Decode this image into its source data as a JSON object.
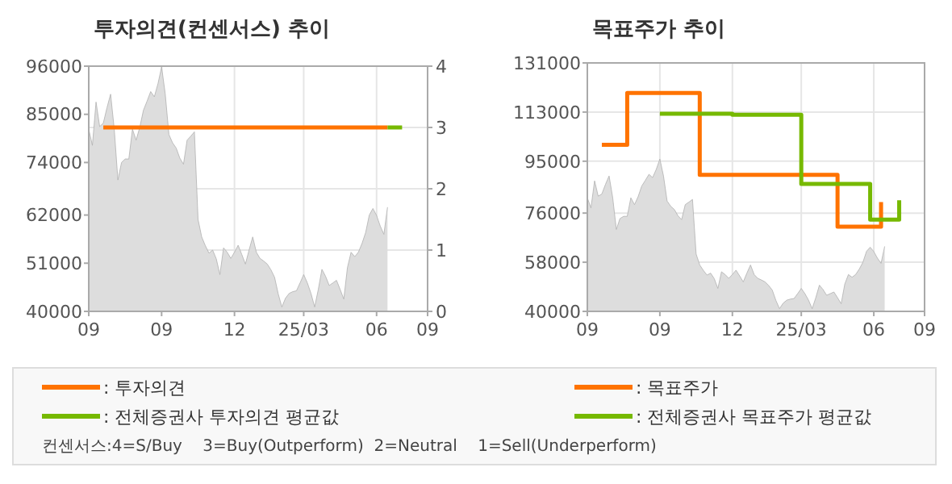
{
  "chart_data": [
    {
      "type": "step",
      "title": "투자의견(컨센서스) 추이",
      "categories": [
        "09",
        null,
        null,
        null,
        null,
        null,
        null,
        null,
        null,
        null,
        null,
        null,
        null,
        null,
        null,
        null,
        null,
        null,
        null,
        null,
        "09",
        null,
        null,
        null,
        null,
        null,
        null,
        null,
        null,
        null,
        null,
        null,
        null,
        null,
        null,
        null,
        null,
        null,
        null,
        null,
        "12",
        null,
        null,
        null,
        null,
        null,
        null,
        null,
        null,
        null,
        null,
        null,
        null,
        null,
        null,
        null,
        null,
        null,
        null,
        "25/03",
        null,
        null,
        null,
        null,
        null,
        null,
        null,
        null,
        null,
        null,
        null,
        null,
        null,
        null,
        null,
        null,
        null,
        null,
        null,
        "06",
        null,
        null,
        null,
        null,
        null,
        null,
        null,
        null,
        null,
        null,
        null,
        null,
        null,
        "09"
      ],
      "ylim": [
        40000,
        96000
      ],
      "yticks": [
        40000,
        51000,
        62000,
        74000,
        85000,
        96000
      ],
      "y2lim": [
        0,
        4
      ],
      "y2ticks": [
        0,
        1,
        2,
        3,
        4
      ],
      "grid": true,
      "legend": "bottom",
      "annotations": [
        "컨센서스:4=S/Buy    3=Buy(Outperform)  2=Neutral    1=Sell(Underperform)"
      ],
      "series": [
        {
          "type": "area",
          "color": "#dddddd",
          "values": [
            81600,
            77900,
            87800,
            82200,
            83000,
            86500,
            89600,
            81600,
            70000,
            74000,
            74800,
            74800,
            81600,
            79100,
            82000,
            85900,
            88000,
            90200,
            89000,
            92000,
            95800,
            89600,
            80400,
            78500,
            77300,
            75000,
            73600,
            79100,
            80000,
            81000,
            61000,
            57000,
            55000,
            53300,
            54000,
            52000,
            48400,
            54500,
            53500,
            52100,
            53500,
            55100,
            53000,
            50800,
            54000,
            57000,
            53500,
            52100,
            51500,
            50800,
            49500,
            47800,
            44000,
            41000,
            43000,
            44100,
            44500,
            44700,
            46500,
            48400,
            46500,
            44100,
            41000,
            45000,
            49600,
            48000,
            45900,
            46500,
            47100,
            45000,
            42800,
            50000,
            53500,
            52500,
            53500,
            55500,
            58000,
            62000,
            63500,
            61900,
            59500,
            57600,
            63800,
            null,
            null,
            null,
            null,
            null,
            null,
            null,
            null,
            null,
            null,
            null
          ]
        },
        {
          "name": ": 투자의견",
          "axis": "y2",
          "color": "#ff7300",
          "values": [
            null,
            null,
            null,
            null,
            3,
            3,
            3,
            3,
            3,
            3,
            3,
            3,
            3,
            3,
            3,
            3,
            3,
            3,
            3,
            3,
            3,
            3,
            3,
            3,
            3,
            3,
            3,
            3,
            3,
            3,
            3,
            3,
            3,
            3,
            3,
            3,
            3,
            3,
            3,
            3,
            3,
            3,
            3,
            3,
            3,
            3,
            3,
            3,
            3,
            3,
            3,
            3,
            3,
            3,
            3,
            3,
            3,
            3,
            3,
            3,
            3,
            3,
            3,
            3,
            3,
            3,
            3,
            3,
            3,
            3,
            3,
            3,
            3,
            3,
            3,
            3,
            3,
            3,
            3,
            3,
            3,
            3,
            3,
            null,
            null,
            null,
            null,
            null,
            null,
            null,
            null,
            null,
            null,
            null
          ]
        },
        {
          "name": ": 전체증권사 투자의견 평균값",
          "axis": "y2",
          "color": "#76b900",
          "values": [
            null,
            null,
            null,
            null,
            null,
            null,
            null,
            null,
            null,
            null,
            null,
            null,
            null,
            null,
            null,
            null,
            null,
            null,
            null,
            null,
            null,
            null,
            null,
            null,
            null,
            null,
            null,
            null,
            null,
            null,
            null,
            null,
            null,
            null,
            null,
            null,
            null,
            null,
            null,
            null,
            null,
            null,
            null,
            null,
            null,
            null,
            null,
            null,
            null,
            null,
            null,
            null,
            null,
            null,
            null,
            null,
            null,
            null,
            null,
            null,
            null,
            null,
            null,
            null,
            null,
            null,
            null,
            null,
            null,
            null,
            null,
            null,
            null,
            null,
            null,
            null,
            null,
            null,
            null,
            null,
            null,
            null,
            3,
            3,
            3,
            3,
            3,
            null,
            null,
            null,
            null,
            null,
            null,
            null
          ]
        }
      ]
    },
    {
      "type": "step",
      "title": "목표주가 추이",
      "categories": [
        "09",
        null,
        null,
        null,
        null,
        null,
        null,
        null,
        null,
        null,
        null,
        null,
        null,
        null,
        null,
        null,
        null,
        null,
        null,
        null,
        "09",
        null,
        null,
        null,
        null,
        null,
        null,
        null,
        null,
        null,
        null,
        null,
        null,
        null,
        null,
        null,
        null,
        null,
        null,
        null,
        "12",
        null,
        null,
        null,
        null,
        null,
        null,
        null,
        null,
        null,
        null,
        null,
        null,
        null,
        null,
        null,
        null,
        null,
        null,
        "25/03",
        null,
        null,
        null,
        null,
        null,
        null,
        null,
        null,
        null,
        null,
        null,
        null,
        null,
        null,
        null,
        null,
        null,
        null,
        null,
        "06",
        null,
        null,
        null,
        null,
        null,
        null,
        null,
        null,
        null,
        null,
        null,
        null,
        null,
        "09"
      ],
      "ylim": [
        40000,
        131000
      ],
      "yticks": [
        40000,
        58000,
        76000,
        95000,
        113000,
        131000
      ],
      "grid": true,
      "legend": "bottom",
      "series": [
        {
          "type": "area",
          "color": "#dddddd",
          "values": [
            81600,
            77900,
            87800,
            82200,
            83000,
            86500,
            89600,
            81600,
            70000,
            74000,
            74800,
            74800,
            81600,
            79100,
            82000,
            85900,
            88000,
            90200,
            89000,
            92000,
            95800,
            89600,
            80400,
            78500,
            77300,
            75000,
            73600,
            79100,
            80000,
            81000,
            61000,
            57000,
            55000,
            53300,
            54000,
            52000,
            48400,
            54500,
            53500,
            52100,
            53500,
            55100,
            53000,
            50800,
            54000,
            57000,
            53500,
            52100,
            51500,
            50800,
            49500,
            47800,
            44000,
            41000,
            43000,
            44100,
            44500,
            44700,
            46500,
            48400,
            46500,
            44100,
            41000,
            45000,
            49600,
            48000,
            45900,
            46500,
            47100,
            45000,
            42800,
            50000,
            53500,
            52500,
            53500,
            55500,
            58000,
            62000,
            63500,
            61900,
            59500,
            57600,
            63800,
            null,
            null,
            null,
            null,
            null,
            null,
            null,
            null,
            null,
            null,
            null
          ]
        },
        {
          "name": ": 목표주가",
          "color": "#ff7300",
          "values": [
            null,
            null,
            null,
            null,
            101000,
            101000,
            101000,
            101000,
            101000,
            101000,
            101000,
            120000,
            120000,
            120000,
            120000,
            120000,
            120000,
            120000,
            120000,
            120000,
            120000,
            120000,
            120000,
            120000,
            120000,
            120000,
            120000,
            120000,
            120000,
            120000,
            120000,
            90000,
            90000,
            90000,
            90000,
            90000,
            90000,
            90000,
            90000,
            90000,
            90000,
            90000,
            90000,
            90000,
            90000,
            90000,
            90000,
            90000,
            90000,
            90000,
            90000,
            90000,
            90000,
            90000,
            90000,
            90000,
            90000,
            90000,
            90000,
            90000,
            90000,
            90000,
            90000,
            90000,
            90000,
            90000,
            90000,
            90000,
            90000,
            71000,
            71000,
            71000,
            71000,
            71000,
            71000,
            71000,
            71000,
            71000,
            71000,
            71000,
            71000,
            80000,
            null,
            null,
            null,
            null,
            null,
            null,
            null,
            null,
            null,
            null,
            null,
            null
          ]
        },
        {
          "name": ": 전체증권사 목표주가 평균값",
          "color": "#76b900",
          "values": [
            null,
            null,
            null,
            null,
            null,
            null,
            null,
            null,
            null,
            null,
            null,
            null,
            null,
            null,
            null,
            null,
            null,
            null,
            null,
            null,
            112400,
            112400,
            112400,
            112400,
            112400,
            112400,
            112400,
            112400,
            112400,
            112400,
            112400,
            112400,
            112400,
            112400,
            112400,
            112400,
            112400,
            112400,
            112400,
            112400,
            112000,
            112000,
            112000,
            112000,
            112000,
            112000,
            112000,
            112000,
            112000,
            112000,
            112000,
            112000,
            112000,
            112000,
            112000,
            112000,
            112000,
            112000,
            112000,
            86700,
            86700,
            86700,
            86700,
            86700,
            86700,
            86700,
            86700,
            86700,
            86700,
            86700,
            86700,
            86700,
            86700,
            86700,
            86700,
            86700,
            86700,
            86700,
            73600,
            73600,
            73600,
            73600,
            73600,
            73600,
            73600,
            73600,
            80700,
            null,
            null,
            null,
            null,
            null,
            null,
            null
          ]
        }
      ]
    }
  ]
}
